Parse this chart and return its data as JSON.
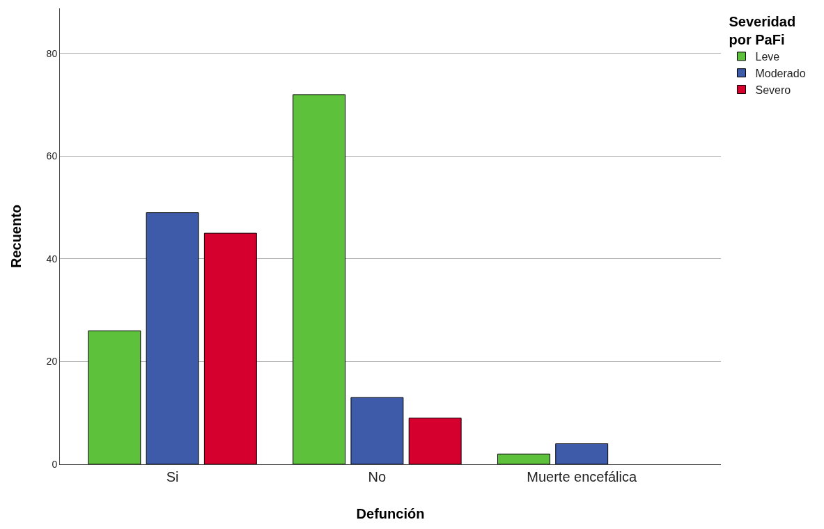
{
  "chart_data": {
    "type": "bar",
    "xlabel": "Defunción",
    "ylabel": "Recuento",
    "legend_title": "Severidad por PaFi",
    "categories": [
      "Si",
      "No",
      "Muerte encefálica"
    ],
    "series": [
      {
        "name": "Leve",
        "color": "#5ec13b",
        "values": [
          26,
          72,
          2
        ]
      },
      {
        "name": "Moderado",
        "color": "#3e5ba9",
        "values": [
          49,
          13,
          4
        ]
      },
      {
        "name": "Severo",
        "color": "#d6002e",
        "values": [
          45,
          9,
          null
        ]
      }
    ],
    "ylim": [
      0,
      88.8
    ],
    "yticks": [
      0,
      20,
      40,
      60,
      80
    ],
    "grid": "y",
    "legend": "top right"
  }
}
